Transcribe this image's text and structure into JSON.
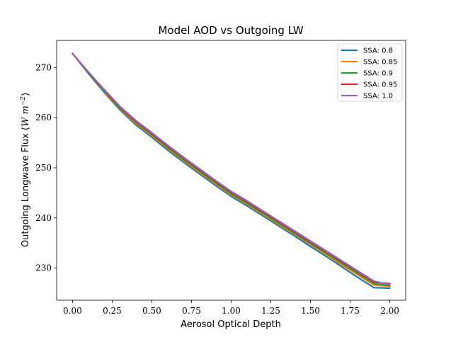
{
  "chart_data": {
    "type": "line",
    "title": "Model AOD vs Outgoing LW",
    "xlabel": "Aerosol Optical Depth",
    "ylabel": "Outgoing Longwave Flux (W m⁻²)",
    "ylabel_text": "Outgoing Longwave Flux (",
    "ylabel_unit": "W m",
    "ylabel_exp": "−2",
    "ylabel_close": ")",
    "xlim": [
      -0.1,
      2.1
    ],
    "ylim": [
      223.6,
      275.4
    ],
    "xticks": [
      0.0,
      0.25,
      0.5,
      0.75,
      1.0,
      1.25,
      1.5,
      1.75,
      2.0
    ],
    "xtick_labels": [
      "0.00",
      "0.25",
      "0.50",
      "0.75",
      "1.00",
      "1.25",
      "1.50",
      "1.75",
      "2.00"
    ],
    "yticks": [
      230,
      240,
      250,
      260,
      270
    ],
    "ytick_labels": [
      "230",
      "240",
      "250",
      "260",
      "270"
    ],
    "grid": false,
    "legend_position": "top-right",
    "x": [
      0.0,
      0.1,
      0.2,
      0.3,
      0.4,
      0.5,
      0.6,
      0.7,
      0.8,
      0.9,
      1.0,
      1.1,
      1.2,
      1.3,
      1.4,
      1.5,
      1.6,
      1.7,
      1.8,
      1.9,
      2.0
    ],
    "series": [
      {
        "name": "SSA: 0.8",
        "color": "#1f77b4",
        "values": [
          272.8,
          268.8,
          265.0,
          261.5,
          258.5,
          256.1,
          253.5,
          251.1,
          248.8,
          246.5,
          244.3,
          242.4,
          240.4,
          238.4,
          236.4,
          234.3,
          232.3,
          230.2,
          228.1,
          226.1,
          226.0
        ]
      },
      {
        "name": "SSA: 0.85",
        "color": "#ff7f0e",
        "values": [
          272.8,
          268.9,
          265.2,
          261.7,
          258.8,
          256.4,
          253.8,
          251.4,
          249.1,
          246.8,
          244.6,
          242.7,
          240.7,
          238.7,
          236.7,
          234.7,
          232.7,
          230.6,
          228.6,
          226.6,
          226.4
        ]
      },
      {
        "name": "SSA: 0.9",
        "color": "#2ca02c",
        "values": [
          272.8,
          268.9,
          265.3,
          261.8,
          259.0,
          256.6,
          254.0,
          251.6,
          249.3,
          247.0,
          244.8,
          242.9,
          240.9,
          238.9,
          236.9,
          234.9,
          232.9,
          230.9,
          228.9,
          226.9,
          226.5
        ]
      },
      {
        "name": "SSA: 0.95",
        "color": "#d62728",
        "values": [
          272.8,
          269.0,
          265.5,
          262.0,
          259.2,
          256.8,
          254.3,
          251.9,
          249.6,
          247.3,
          245.1,
          243.2,
          241.2,
          239.2,
          237.2,
          235.2,
          233.2,
          231.2,
          229.2,
          227.2,
          226.9
        ]
      },
      {
        "name": "SSA: 1.0",
        "color": "#9467bd",
        "values": [
          272.8,
          269.1,
          265.6,
          262.2,
          259.4,
          257.0,
          254.5,
          252.1,
          249.8,
          247.5,
          245.3,
          243.4,
          241.4,
          239.4,
          237.4,
          235.4,
          233.4,
          231.4,
          229.4,
          227.4,
          226.7
        ]
      }
    ]
  }
}
